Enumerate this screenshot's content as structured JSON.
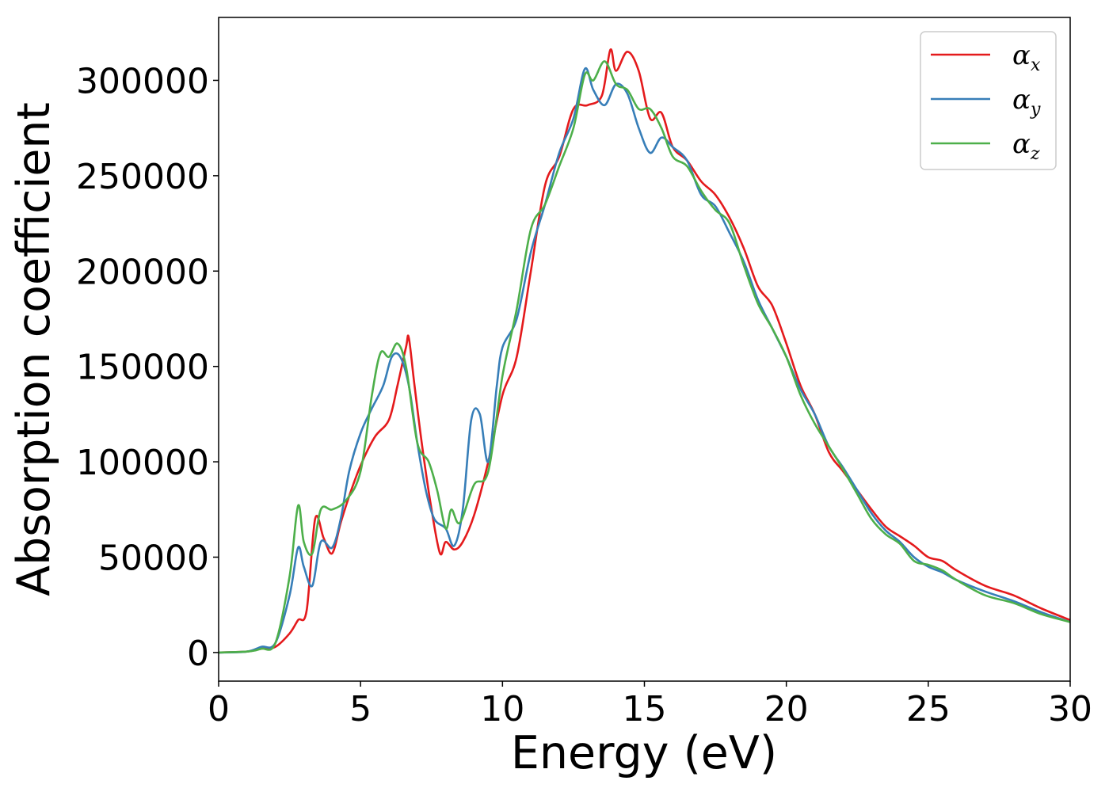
{
  "chart_data": {
    "type": "line",
    "title": "",
    "xlabel": "Energy (eV)",
    "ylabel": "Absorption coefficient",
    "xlim": [
      0,
      30
    ],
    "ylim": [
      -15000,
      333000
    ],
    "xticks": [
      0,
      5,
      10,
      15,
      20,
      25,
      30
    ],
    "yticks": [
      0,
      50000,
      100000,
      150000,
      200000,
      250000,
      300000
    ],
    "grid": false,
    "legend_position": "top-right",
    "series": [
      {
        "name": "αx",
        "symbol": "α",
        "subscript": "x",
        "color": "#e41a1c",
        "x": [
          0,
          1.0,
          1.5,
          2.0,
          2.5,
          2.8,
          3.1,
          3.4,
          3.7,
          4.0,
          4.3,
          4.6,
          5.0,
          5.5,
          6.0,
          6.3,
          6.6,
          6.7,
          6.9,
          7.2,
          7.5,
          7.8,
          8.0,
          8.3,
          8.6,
          9.0,
          9.5,
          10.0,
          10.5,
          11.0,
          11.5,
          12.0,
          12.5,
          13.0,
          13.5,
          13.8,
          14.0,
          14.4,
          14.8,
          15.2,
          15.6,
          16.0,
          16.5,
          17.0,
          17.5,
          18.0,
          18.5,
          19.0,
          19.5,
          20.0,
          20.5,
          21.0,
          21.5,
          22.0,
          22.5,
          23.0,
          23.5,
          24.0,
          24.5,
          25.0,
          25.5,
          26.0,
          27.0,
          28.0,
          29.0,
          30.0
        ],
        "y": [
          0,
          500,
          2000,
          3000,
          10000,
          17000,
          22000,
          70000,
          60000,
          52000,
          68000,
          82000,
          98000,
          113000,
          122000,
          140000,
          160000,
          165000,
          140000,
          105000,
          75000,
          52000,
          58000,
          54000,
          58000,
          72000,
          100000,
          135000,
          155000,
          200000,
          245000,
          260000,
          285000,
          287000,
          292000,
          316000,
          305000,
          315000,
          305000,
          280000,
          283000,
          265000,
          258000,
          247000,
          240000,
          228000,
          212000,
          192000,
          182000,
          162000,
          140000,
          125000,
          105000,
          95000,
          85000,
          75000,
          66000,
          61000,
          56000,
          50000,
          48000,
          43000,
          35000,
          30000,
          23000,
          17000
        ]
      },
      {
        "name": "αy",
        "symbol": "α",
        "subscript": "y",
        "color": "#377eb8",
        "x": [
          0,
          1.0,
          1.5,
          2.0,
          2.5,
          2.8,
          3.0,
          3.3,
          3.6,
          4.0,
          4.3,
          4.6,
          5.0,
          5.4,
          5.8,
          6.1,
          6.4,
          6.7,
          7.0,
          7.3,
          7.6,
          8.0,
          8.3,
          8.6,
          8.9,
          9.2,
          9.5,
          9.8,
          10.0,
          10.5,
          11.0,
          11.5,
          12.0,
          12.5,
          12.9,
          13.2,
          13.6,
          14.0,
          14.4,
          14.8,
          15.2,
          15.6,
          16.0,
          16.5,
          17.0,
          17.5,
          18.0,
          18.5,
          19.0,
          19.5,
          20.0,
          20.5,
          21.0,
          21.5,
          22.0,
          22.5,
          23.0,
          23.5,
          24.0,
          24.5,
          25.0,
          25.5,
          26.0,
          27.0,
          28.0,
          29.0,
          30.0
        ],
        "y": [
          0,
          500,
          3000,
          5000,
          30000,
          55000,
          45000,
          35000,
          58000,
          55000,
          70000,
          95000,
          115000,
          128000,
          140000,
          155000,
          155000,
          140000,
          110000,
          85000,
          70000,
          65000,
          56000,
          75000,
          122000,
          125000,
          100000,
          140000,
          160000,
          175000,
          210000,
          235000,
          262000,
          280000,
          306000,
          295000,
          287000,
          298000,
          293000,
          275000,
          262000,
          270000,
          265000,
          258000,
          240000,
          234000,
          220000,
          205000,
          185000,
          170000,
          155000,
          138000,
          125000,
          108000,
          97000,
          85000,
          73000,
          64000,
          58000,
          50000,
          45000,
          42000,
          38000,
          32000,
          27000,
          21000,
          16000
        ]
      },
      {
        "name": "αz",
        "symbol": "α",
        "subscript": "z",
        "color": "#4daf4a",
        "x": [
          0,
          1.0,
          1.5,
          2.0,
          2.5,
          2.8,
          3.0,
          3.3,
          3.6,
          4.0,
          4.5,
          5.0,
          5.4,
          5.7,
          6.0,
          6.3,
          6.6,
          7.0,
          7.4,
          7.7,
          8.0,
          8.2,
          8.5,
          9.0,
          9.5,
          10.0,
          10.5,
          11.0,
          11.5,
          12.0,
          12.5,
          12.9,
          13.2,
          13.6,
          14.0,
          14.4,
          14.8,
          15.2,
          15.6,
          16.0,
          16.5,
          17.0,
          17.5,
          18.0,
          18.5,
          19.0,
          19.5,
          20.0,
          20.5,
          21.0,
          21.5,
          22.0,
          22.5,
          23.0,
          23.5,
          24.0,
          24.5,
          25.0,
          25.5,
          26.0,
          27.0,
          28.0,
          29.0,
          30.0
        ],
        "y": [
          0,
          500,
          2000,
          5000,
          40000,
          77000,
          58000,
          52000,
          75000,
          75000,
          80000,
          95000,
          135000,
          157000,
          155000,
          162000,
          150000,
          110000,
          100000,
          85000,
          65000,
          75000,
          68000,
          88000,
          95000,
          145000,
          180000,
          222000,
          235000,
          255000,
          275000,
          303000,
          300000,
          310000,
          298000,
          295000,
          285000,
          285000,
          275000,
          260000,
          255000,
          242000,
          232000,
          225000,
          203000,
          183000,
          170000,
          155000,
          135000,
          120000,
          108000,
          96000,
          83000,
          70000,
          62000,
          57000,
          48000,
          46000,
          43000,
          38000,
          30000,
          26000,
          20000,
          16000
        ]
      }
    ]
  }
}
